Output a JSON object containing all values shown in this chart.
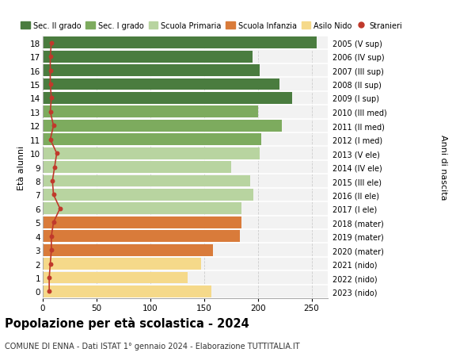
{
  "ages": [
    18,
    17,
    16,
    15,
    14,
    13,
    12,
    11,
    10,
    9,
    8,
    7,
    6,
    5,
    4,
    3,
    2,
    1,
    0
  ],
  "values": [
    255,
    195,
    202,
    220,
    232,
    200,
    222,
    203,
    202,
    175,
    193,
    196,
    185,
    185,
    183,
    158,
    147,
    135,
    157
  ],
  "stranieri": [
    8,
    7,
    7,
    7,
    8,
    7,
    10,
    7,
    13,
    11,
    9,
    10,
    16,
    10,
    8,
    8,
    7,
    6,
    6
  ],
  "right_labels": [
    "2005 (V sup)",
    "2006 (IV sup)",
    "2007 (III sup)",
    "2008 (II sup)",
    "2009 (I sup)",
    "2010 (III med)",
    "2011 (II med)",
    "2012 (I med)",
    "2013 (V ele)",
    "2014 (IV ele)",
    "2015 (III ele)",
    "2016 (II ele)",
    "2017 (I ele)",
    "2018 (mater)",
    "2019 (mater)",
    "2020 (mater)",
    "2021 (nido)",
    "2022 (nido)",
    "2023 (nido)"
  ],
  "bar_colors": [
    "#4a7c3f",
    "#4a7c3f",
    "#4a7c3f",
    "#4a7c3f",
    "#4a7c3f",
    "#7dab5e",
    "#7dab5e",
    "#7dab5e",
    "#b8d4a0",
    "#b8d4a0",
    "#b8d4a0",
    "#b8d4a0",
    "#b8d4a0",
    "#d97b3a",
    "#d97b3a",
    "#d97b3a",
    "#f5d98a",
    "#f5d98a",
    "#f5d98a"
  ],
  "legend_labels": [
    "Sec. II grado",
    "Sec. I grado",
    "Scuola Primaria",
    "Scuola Infanzia",
    "Asilo Nido",
    "Stranieri"
  ],
  "legend_colors": [
    "#4a7c3f",
    "#7dab5e",
    "#b8d4a0",
    "#d97b3a",
    "#f5d98a",
    "#c0392b"
  ],
  "ylabel_left": "Età alunni",
  "ylabel_right": "Anni di nascita",
  "title": "Popolazione per età scolastica - 2024",
  "subtitle": "COMUNE DI ENNA - Dati ISTAT 1° gennaio 2024 - Elaborazione TUTTITALIA.IT",
  "xlim": [
    0,
    265
  ],
  "stranieri_color": "#c0392b",
  "stranieri_line_color": "#c0392b",
  "bg_color": "#ffffff",
  "plot_bg_color": "#f2f2f2"
}
